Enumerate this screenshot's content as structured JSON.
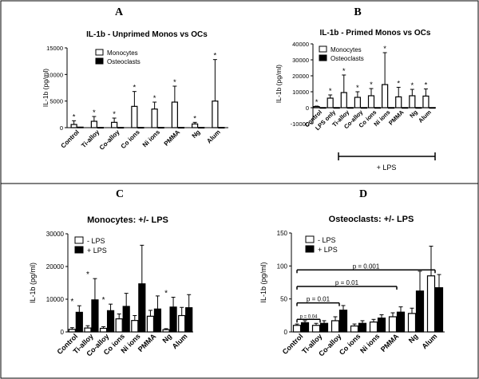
{
  "figure": {
    "panel_letters": [
      "A",
      "B",
      "C",
      "D"
    ],
    "lps_bracket_label": "+ LPS"
  },
  "chart_data": [
    {
      "type": "bar",
      "panel": "A",
      "title": "IL-1b - Unprimed Monos vs OCs",
      "ylabel": "IL-1b (pg/ml)",
      "xlabel": "",
      "categories": [
        "Control",
        "Ti-alloy",
        "Co-alloy",
        "Co ions",
        "Ni ions",
        "PMMA",
        "Ng",
        "Alum"
      ],
      "ylim": [
        0,
        15000
      ],
      "yticks": [
        0,
        5000,
        10000,
        15000
      ],
      "legend": "top-left",
      "grid": false,
      "series": [
        {
          "name": "Monocytes",
          "fill": "#ffffff",
          "values": [
            600,
            1200,
            1000,
            4000,
            3500,
            4800,
            700,
            5000
          ],
          "errors": [
            700,
            900,
            800,
            2800,
            1300,
            3000,
            300,
            7800
          ]
        },
        {
          "name": "Osteoclasts",
          "fill": "#000000",
          "values": [
            100,
            50,
            50,
            50,
            50,
            50,
            50,
            50
          ],
          "errors": [
            0,
            0,
            0,
            0,
            0,
            0,
            0,
            0
          ]
        }
      ],
      "significance": [
        1,
        1,
        1,
        1,
        1,
        1,
        1,
        1
      ]
    },
    {
      "type": "bar",
      "panel": "B",
      "title": "IL-1b - Primed Monos vs OCs",
      "ylabel": "IL-1b (pg/ml)",
      "xlabel": "",
      "categories": [
        "Control",
        "LPS only",
        "Ti-alloy",
        "Co-alloy",
        "Co ions",
        "Ni ions",
        "PMMA",
        "Ng",
        "Alum"
      ],
      "ylim": [
        -10000,
        40000
      ],
      "yticks": [
        -10000,
        0,
        10000,
        20000,
        30000,
        40000
      ],
      "legend": "top-left",
      "grid": false,
      "series": [
        {
          "name": "Monocytes",
          "fill": "#ffffff",
          "values": [
            700,
            6000,
            9500,
            6500,
            7500,
            14500,
            6800,
            7500,
            7300
          ],
          "errors": [
            300,
            2000,
            11000,
            3500,
            4500,
            20000,
            6000,
            4000,
            4500
          ]
        },
        {
          "name": "Osteoclasts",
          "fill": "#000000",
          "values": [
            100,
            100,
            100,
            100,
            100,
            100,
            100,
            100,
            100
          ],
          "errors": [
            0,
            0,
            0,
            0,
            0,
            0,
            0,
            0,
            0
          ]
        }
      ],
      "significance": [
        1,
        1,
        1,
        1,
        1,
        1,
        1,
        1,
        1
      ]
    },
    {
      "type": "bar",
      "panel": "C",
      "title": "Monocytes: +/- LPS",
      "ylabel": "IL-1b (pg/ml)",
      "xlabel": "",
      "categories": [
        "Control",
        "Ti-alloy",
        "Co-alloy",
        "Co ions",
        "Ni ions",
        "PMMA",
        "Ng",
        "Alum"
      ],
      "ylim": [
        0,
        30000
      ],
      "yticks": [
        0,
        10000,
        20000,
        30000
      ],
      "legend": "top-left",
      "grid": false,
      "series": [
        {
          "name": "- LPS",
          "fill": "#ffffff",
          "values": [
            800,
            1200,
            1100,
            4000,
            3500,
            4800,
            700,
            5000
          ],
          "errors": [
            500,
            700,
            500,
            1500,
            1500,
            1800,
            300,
            2500
          ]
        },
        {
          "name": "+ LPS",
          "fill": "#000000",
          "values": [
            6000,
            9800,
            6500,
            7800,
            14700,
            7000,
            7600,
            7400
          ],
          "errors": [
            2000,
            6500,
            2000,
            4000,
            11800,
            4000,
            3000,
            4000
          ]
        }
      ],
      "significance": [
        1,
        1,
        1,
        0,
        0,
        0,
        1,
        0
      ]
    },
    {
      "type": "bar",
      "panel": "D",
      "title": "Osteoclasts: +/-  LPS",
      "ylabel": "IL-1b (pg/ml)",
      "xlabel": "",
      "categories": [
        "Control",
        "Ti-alloy",
        "Co-alloy",
        "Co ions",
        "Ni ions",
        "PMMA",
        "Ng",
        "Alum"
      ],
      "ylim": [
        0,
        150
      ],
      "yticks": [
        0,
        50,
        100,
        150
      ],
      "legend": "top-left",
      "grid": false,
      "series": [
        {
          "name": "- LPS",
          "fill": "#ffffff",
          "values": [
            10,
            10,
            17,
            9,
            15,
            23,
            28,
            85
          ],
          "errors": [
            2,
            3,
            6,
            3,
            4,
            6,
            8,
            45
          ]
        },
        {
          "name": "+ LPS",
          "fill": "#000000",
          "values": [
            14,
            13,
            33,
            13,
            21,
            30,
            62,
            67
          ],
          "errors": [
            3,
            4,
            7,
            4,
            5,
            8,
            30,
            20
          ]
        }
      ],
      "comparisons": [
        {
          "label": "p = 0.04",
          "to": "Ti-alloy"
        },
        {
          "label": "p = 0.01",
          "to": "Co-alloy"
        },
        {
          "label": "p = 0.01",
          "to": "PMMA"
        },
        {
          "label": "p = 0.001",
          "to": "Alum"
        }
      ]
    }
  ]
}
